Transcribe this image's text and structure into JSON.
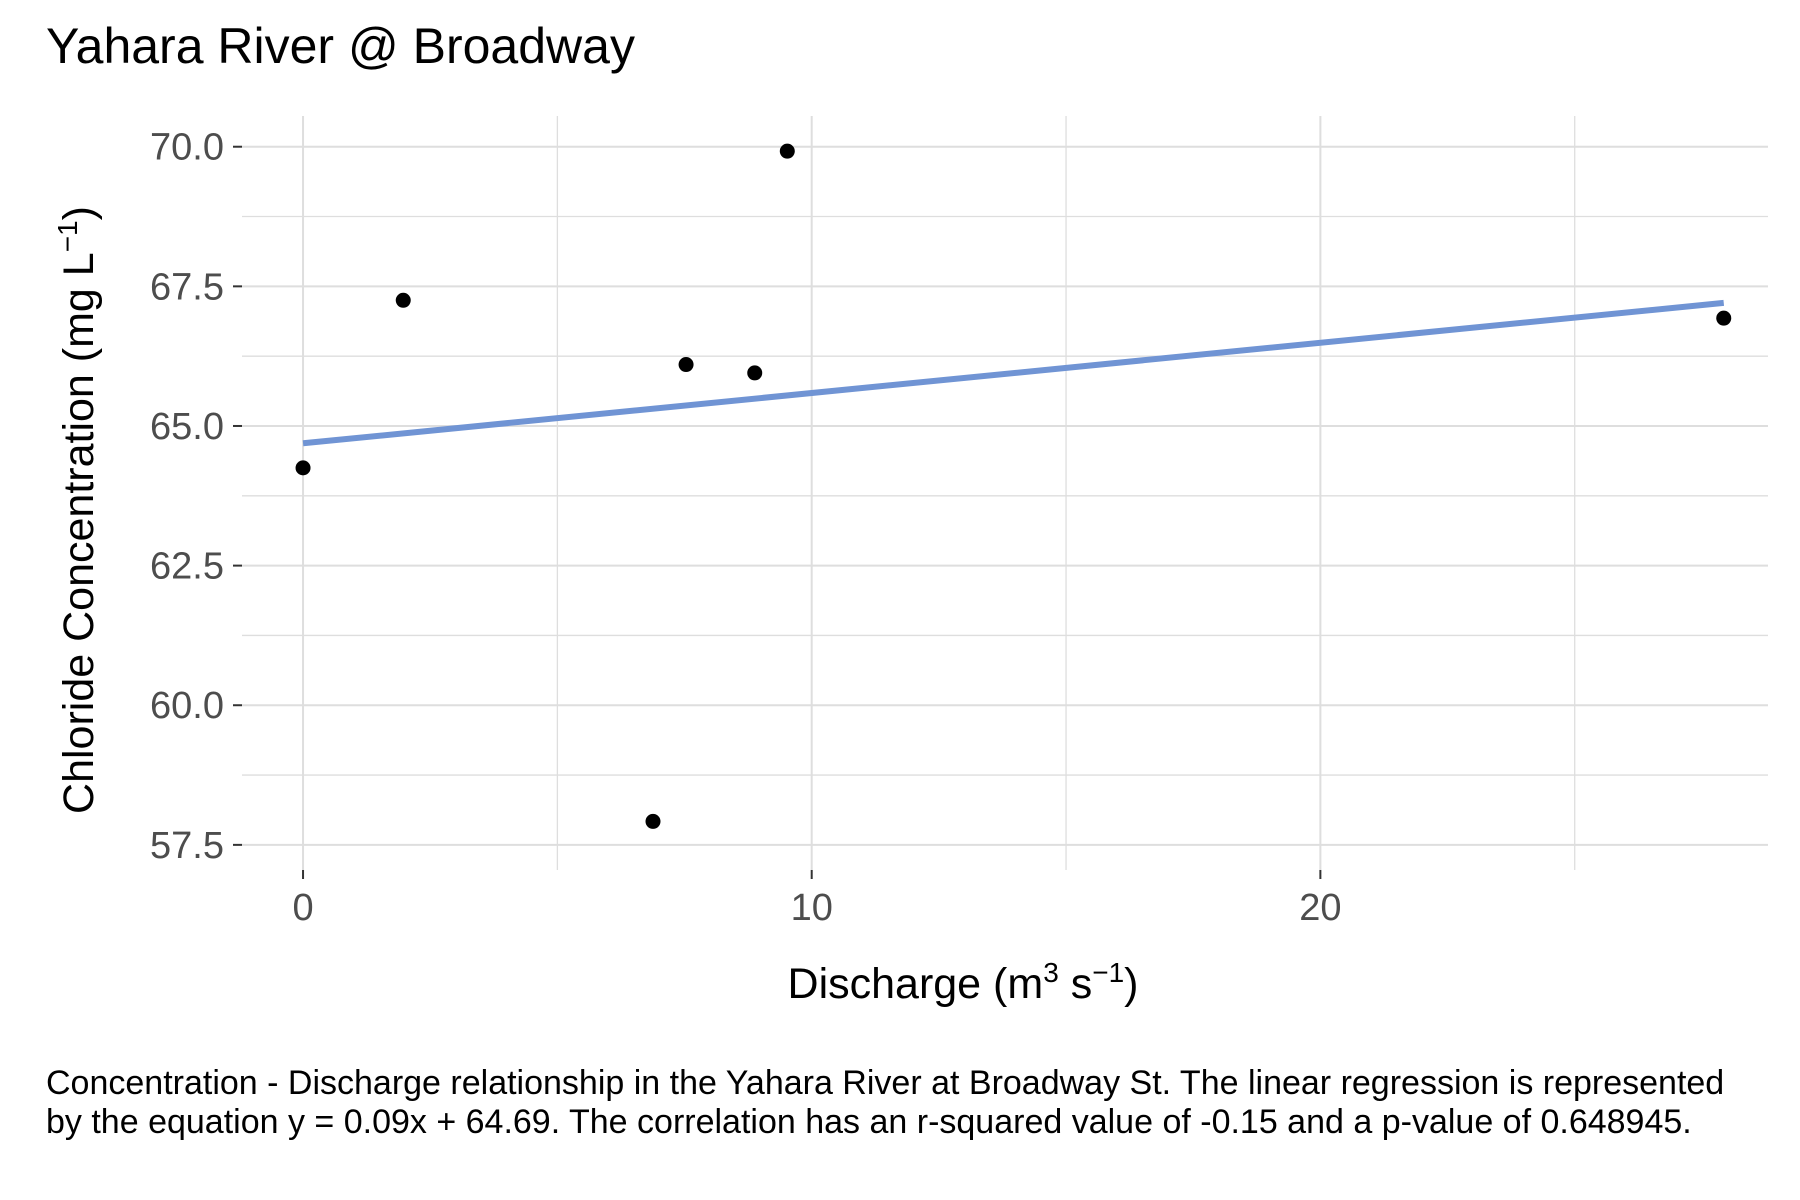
{
  "chart_data": {
    "type": "scatter",
    "title": "Yahara River @ Broadway",
    "xlabel": {
      "text": "Discharge (m",
      "sup1": "3",
      "mid": " s",
      "sup2": "−1",
      "end": ")"
    },
    "ylabel": {
      "text": "Chloride Concentration (mg L",
      "sup": "−1",
      "end": ")"
    },
    "xlim": [
      -1.2,
      28.8
    ],
    "ylim": [
      57.05,
      70.55
    ],
    "x_ticks": [
      0,
      10,
      20
    ],
    "x_tick_labels": [
      "0",
      "10",
      "20"
    ],
    "x_minor_ticks": [
      5,
      15,
      25
    ],
    "y_ticks": [
      57.5,
      60.0,
      62.5,
      65.0,
      67.5,
      70.0
    ],
    "y_tick_labels": [
      "57.5",
      "60.0",
      "62.5",
      "65.0",
      "67.5",
      "70.0"
    ],
    "y_minor_ticks": [
      58.75,
      61.25,
      63.75,
      66.25,
      68.75
    ],
    "grid": true,
    "points": [
      {
        "x": 0.0,
        "y": 64.25
      },
      {
        "x": 1.97,
        "y": 67.25
      },
      {
        "x": 6.88,
        "y": 57.92
      },
      {
        "x": 7.53,
        "y": 66.1
      },
      {
        "x": 8.88,
        "y": 65.95
      },
      {
        "x": 9.52,
        "y": 69.92
      },
      {
        "x": 27.93,
        "y": 66.93
      }
    ],
    "regression": {
      "slope": 0.09,
      "intercept": 64.69,
      "x_range": [
        0.0,
        27.93
      ]
    },
    "colors": {
      "points": "#000000",
      "line": "#7094d4",
      "grid": "#dedede",
      "tick_text": "#4d4d4d"
    }
  },
  "caption": "Concentration - Discharge relationship in the Yahara River at Broadway St. The linear regression is represented by the equation y = 0.09x + 64.69. The correlation has an r-squared value of -0.15 and a p-value of 0.648945."
}
